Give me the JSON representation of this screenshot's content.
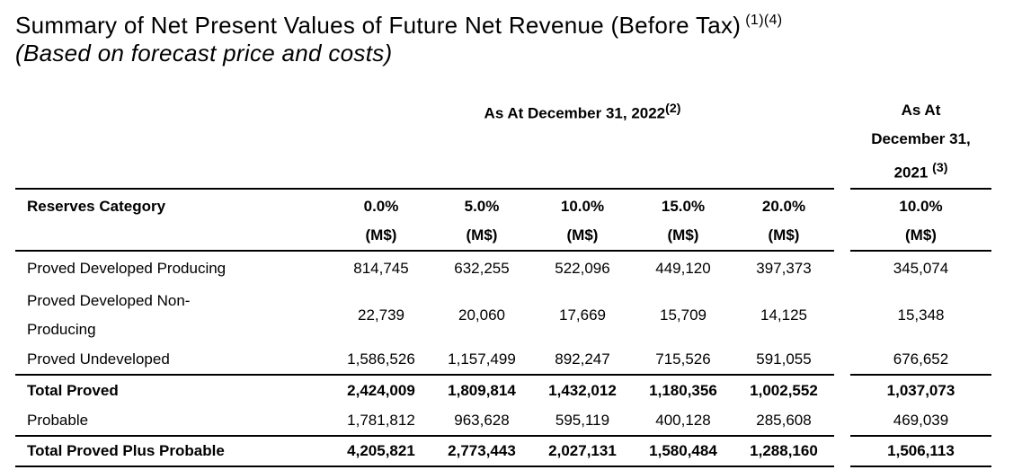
{
  "title": {
    "text": "Summary of Net Present Values of Future Net Revenue (Before Tax)",
    "superscript": "(1)(4)",
    "subtitle": "(Based on forecast price and costs)"
  },
  "table": {
    "group_header_2022": {
      "text": "As At December 31, 2022",
      "superscript": "(2)"
    },
    "group_header_2021": {
      "line1": "As At",
      "line2": "December 31,",
      "line3": "2021 ",
      "superscript": "(3)"
    },
    "category_header": "Reserves Category",
    "columns_2022": [
      {
        "rate": "0.0%",
        "unit": "(M$)"
      },
      {
        "rate": "5.0%",
        "unit": "(M$)"
      },
      {
        "rate": "10.0%",
        "unit": "(M$)"
      },
      {
        "rate": "15.0%",
        "unit": "(M$)"
      },
      {
        "rate": "20.0%",
        "unit": "(M$)"
      }
    ],
    "column_2021": {
      "rate": "10.0%",
      "unit": "(M$)"
    },
    "rows": [
      {
        "category": "Proved Developed Producing",
        "values": [
          "814,745",
          "632,255",
          "522,096",
          "449,120",
          "397,373"
        ],
        "value_2021": "345,074"
      },
      {
        "category": "Proved Developed Non-\nProducing",
        "values": [
          "22,739",
          "20,060",
          "17,669",
          "15,709",
          "14,125"
        ],
        "value_2021": "15,348"
      },
      {
        "category": "Proved Undeveloped",
        "values": [
          "1,586,526",
          "1,157,499",
          "892,247",
          "715,526",
          "591,055"
        ],
        "value_2021": "676,652"
      },
      {
        "category": "Total Proved",
        "values": [
          "2,424,009",
          "1,809,814",
          "1,432,012",
          "1,180,356",
          "1,002,552"
        ],
        "value_2021": "1,037,073"
      },
      {
        "category": "Probable",
        "values": [
          "1,781,812",
          "963,628",
          "595,119",
          "400,128",
          "285,608"
        ],
        "value_2021": "469,039"
      },
      {
        "category": "Total Proved Plus Probable",
        "values": [
          "4,205,821",
          "2,773,443",
          "2,027,131",
          "1,580,484",
          "1,288,160"
        ],
        "value_2021": "1,506,113"
      }
    ]
  }
}
